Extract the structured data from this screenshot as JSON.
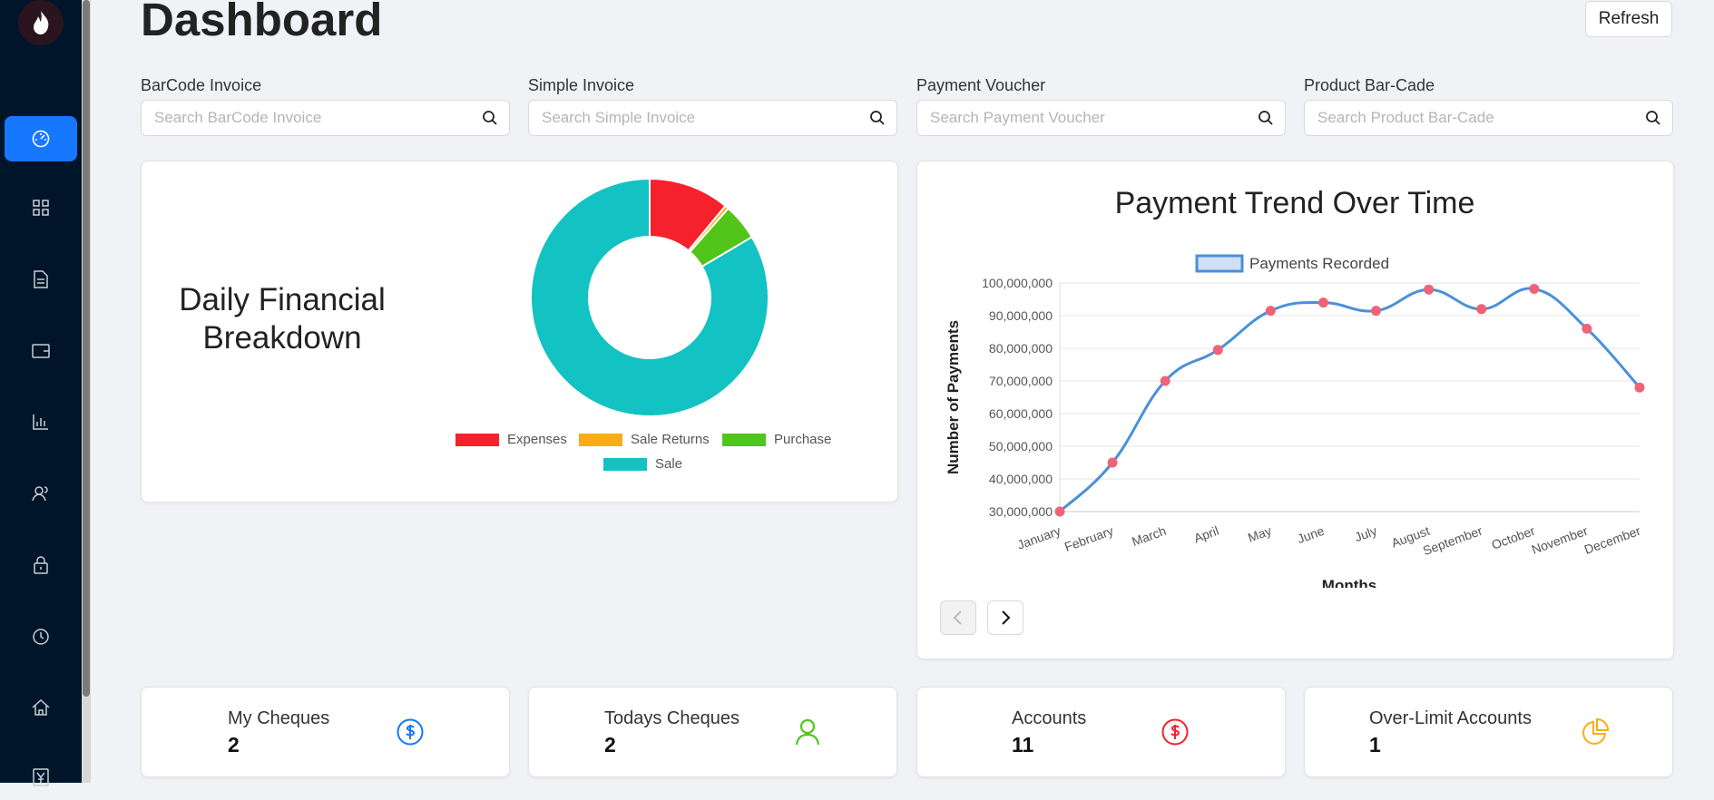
{
  "header": {
    "title": "Dashboard",
    "refresh_label": "Refresh"
  },
  "sidebar": {
    "logo_icon": "flame-icon",
    "items": [
      {
        "icon": "dashboard-icon",
        "active": true
      },
      {
        "icon": "grid-icon"
      },
      {
        "icon": "document-icon"
      },
      {
        "icon": "wallet-icon"
      },
      {
        "icon": "bar-chart-icon"
      },
      {
        "icon": "users-icon"
      },
      {
        "icon": "lock-icon"
      },
      {
        "icon": "clock-icon"
      },
      {
        "icon": "home-icon"
      },
      {
        "icon": "yen-icon"
      }
    ]
  },
  "searches": [
    {
      "label": "BarCode Invoice",
      "placeholder": "Search BarCode Invoice"
    },
    {
      "label": "Simple Invoice",
      "placeholder": "Search Simple Invoice"
    },
    {
      "label": "Payment Voucher",
      "placeholder": "Search Payment Voucher"
    },
    {
      "label": "Product Bar-Cade",
      "placeholder": "Search Product Bar-Cade"
    }
  ],
  "donut_card": {
    "title": "Daily Financial Breakdown"
  },
  "chart_data": [
    {
      "type": "pie",
      "title": "",
      "categories": [
        "Expenses",
        "Sale Returns",
        "Purchase",
        "Sale"
      ],
      "values": [
        11,
        0.5,
        5,
        83.5
      ],
      "colors": [
        "#f5222d",
        "#faad14",
        "#52c41a",
        "#13c2c2"
      ],
      "donut": true,
      "legend": "bottom"
    },
    {
      "type": "line",
      "title": "Payment Trend Over Time",
      "xlabel": "Months",
      "ylabel": "Number of Payments",
      "categories": [
        "January",
        "February",
        "March",
        "April",
        "May",
        "June",
        "July",
        "August",
        "September",
        "October",
        "November",
        "December"
      ],
      "series": [
        {
          "name": "Payments Recorded",
          "values": [
            30000000,
            45000000,
            70000000,
            79500000,
            91500000,
            94000000,
            91500000,
            98000000,
            92000000,
            98200000,
            86000000,
            68000000
          ],
          "color": "#4a90d9",
          "point_color": "#f06377"
        }
      ],
      "yticks": [
        "100,000,000",
        "90,000,000",
        "80,000,000",
        "70,000,000",
        "60,000,000",
        "50,000,000",
        "40,000,000",
        "30,000,000"
      ],
      "ylim": [
        30000000,
        100000000
      ],
      "grid": true,
      "legend": "top"
    }
  ],
  "stats": [
    {
      "label": "My Cheques",
      "value": "2",
      "icon": "dollar-circle-icon",
      "color": "#1677ff"
    },
    {
      "label": "Todays Cheques",
      "value": "2",
      "icon": "user-icon",
      "color": "#52c41a"
    },
    {
      "label": "Accounts",
      "value": "11",
      "icon": "dollar-circle-icon",
      "color": "#f5222d"
    },
    {
      "label": "Over-Limit Accounts",
      "value": "1",
      "icon": "pie-chart-icon",
      "color": "#faad14"
    }
  ]
}
